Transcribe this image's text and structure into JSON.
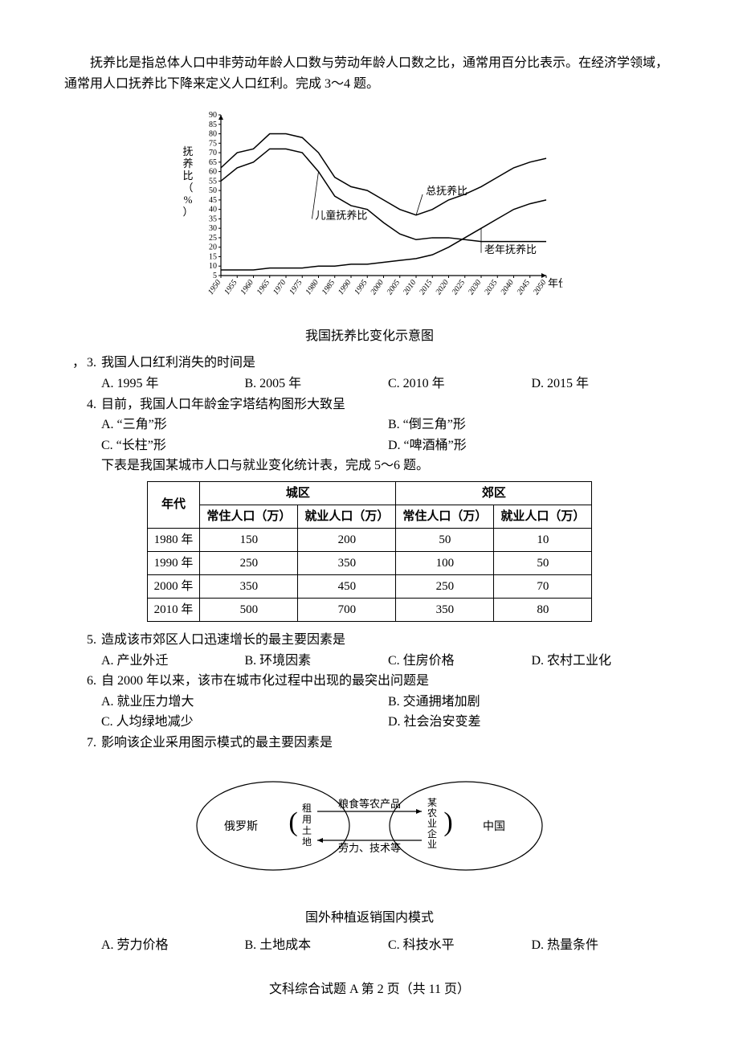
{
  "intro": {
    "p1": "抚养比是指总体人口中非劳动年龄人口数与劳动年龄人口数之比，通常用百分比表示。在经济学领域，通常用人口抚养比下降来定义人口红利。完成 3～4 题。"
  },
  "chart1": {
    "type": "line",
    "title": "我国抚养比变化示意图",
    "ylabel": "抚养比（%）",
    "xlabel": "年份",
    "xlim": [
      1950,
      2050
    ],
    "ylim": [
      5,
      90
    ],
    "yticks": [
      5,
      10,
      15,
      20,
      25,
      30,
      35,
      40,
      45,
      50,
      55,
      60,
      65,
      70,
      75,
      80,
      85,
      90
    ],
    "xticks": [
      1950,
      1955,
      1960,
      1965,
      1970,
      1975,
      1980,
      1985,
      1990,
      1995,
      2000,
      2005,
      2010,
      2015,
      2020,
      2025,
      2030,
      2035,
      2040,
      2045,
      2050
    ],
    "series": [
      {
        "name": "总抚养比",
        "label_pos": [
          2012,
          48
        ],
        "color": "#000000",
        "points": [
          [
            1950,
            62
          ],
          [
            1955,
            70
          ],
          [
            1960,
            72
          ],
          [
            1965,
            80
          ],
          [
            1970,
            80
          ],
          [
            1975,
            78
          ],
          [
            1980,
            70
          ],
          [
            1985,
            57
          ],
          [
            1990,
            52
          ],
          [
            1995,
            50
          ],
          [
            2000,
            45
          ],
          [
            2005,
            40
          ],
          [
            2010,
            37
          ],
          [
            2015,
            40
          ],
          [
            2020,
            45
          ],
          [
            2025,
            48
          ],
          [
            2030,
            52
          ],
          [
            2035,
            57
          ],
          [
            2040,
            62
          ],
          [
            2045,
            65
          ],
          [
            2050,
            67
          ]
        ]
      },
      {
        "name": "儿童抚养比",
        "label_pos": [
          1978,
          35
        ],
        "color": "#000000",
        "points": [
          [
            1950,
            55
          ],
          [
            1955,
            62
          ],
          [
            1960,
            65
          ],
          [
            1965,
            72
          ],
          [
            1970,
            72
          ],
          [
            1975,
            70
          ],
          [
            1980,
            60
          ],
          [
            1985,
            47
          ],
          [
            1990,
            42
          ],
          [
            1995,
            40
          ],
          [
            2000,
            33
          ],
          [
            2005,
            27
          ],
          [
            2010,
            24
          ],
          [
            2015,
            25
          ],
          [
            2020,
            25
          ],
          [
            2025,
            24
          ],
          [
            2030,
            23
          ],
          [
            2035,
            23
          ],
          [
            2040,
            23
          ],
          [
            2045,
            23
          ],
          [
            2050,
            23
          ]
        ]
      },
      {
        "name": "老年抚养比",
        "label_pos": [
          2030,
          17
        ],
        "color": "#000000",
        "points": [
          [
            1950,
            8
          ],
          [
            1955,
            8
          ],
          [
            1960,
            8
          ],
          [
            1965,
            9
          ],
          [
            1970,
            9
          ],
          [
            1975,
            9
          ],
          [
            1980,
            10
          ],
          [
            1985,
            10
          ],
          [
            1990,
            11
          ],
          [
            1995,
            11
          ],
          [
            2000,
            12
          ],
          [
            2005,
            13
          ],
          [
            2010,
            14
          ],
          [
            2015,
            16
          ],
          [
            2020,
            20
          ],
          [
            2025,
            25
          ],
          [
            2030,
            30
          ],
          [
            2035,
            35
          ],
          [
            2040,
            40
          ],
          [
            2045,
            43
          ],
          [
            2050,
            45
          ]
        ]
      }
    ],
    "line_width": 1.5,
    "axis_color": "#000000",
    "font_size_ticks": 10,
    "font_size_labels": 13
  },
  "q3": {
    "num": "3.",
    "prefix": "，",
    "stem": "我国人口红利消失的时间是",
    "A": "A.  1995 年",
    "B": "B.  2005 年",
    "C": "C.  2010 年",
    "D": "D.  2015 年"
  },
  "q4": {
    "num": "4.",
    "stem": "目前，我国人口年龄金字塔结构图形大致呈",
    "A": "A.  “三角”形",
    "B": "B.  “倒三角”形",
    "C": "C.  “长柱”形",
    "D": "D.  “啤酒桶”形"
  },
  "subintro56": "下表是我国某城市人口与就业变化统计表，完成 5～6 题。",
  "table": {
    "type": "table",
    "col_group1": "城区",
    "col_group2": "郊区",
    "rowhead": "年代",
    "subcols": [
      "常住人口（万）",
      "就业人口（万）",
      "常住人口（万）",
      "就业人口（万）"
    ],
    "rows": [
      {
        "year": "1980 年",
        "c": [
          "150",
          "200",
          "50",
          "10"
        ]
      },
      {
        "year": "1990 年",
        "c": [
          "250",
          "350",
          "100",
          "50"
        ]
      },
      {
        "year": "2000 年",
        "c": [
          "350",
          "450",
          "250",
          "70"
        ]
      },
      {
        "year": "2010 年",
        "c": [
          "500",
          "700",
          "350",
          "80"
        ]
      }
    ],
    "border_color": "#000000"
  },
  "q5": {
    "num": "5.",
    "stem": "造成该市郊区人口迅速增长的最主要因素是",
    "A": "A.  产业外迁",
    "B": "B.  环境因素",
    "C": "C.  住房价格",
    "D": "D.  农村工业化"
  },
  "q6": {
    "num": "6.",
    "stem": "自 2000 年以来，该市在城市化过程中出现的最突出问题是",
    "A": "A.  就业压力增大",
    "B": "B.  交通拥堵加剧",
    "C": "C.  人均绿地减少",
    "D": "D.  社会治安变差"
  },
  "q7": {
    "num": "7.",
    "stem": "影响该企业采用图示模式的最主要因素是",
    "A": "A.  劳力价格",
    "B": "B.  土地成本",
    "C": "C.  科技水平",
    "D": "D.  热量条件"
  },
  "diagram2": {
    "type": "flowchart",
    "caption": "国外种植返销国内模式",
    "left_ellipse": "俄罗斯",
    "left_sub": "租用土地",
    "right_ellipse": "中国",
    "right_sub": "某农业企业",
    "arrow_top": "粮食等农产品",
    "arrow_bottom": "劳力、技术等",
    "stroke": "#000000",
    "ellipse_rx": 95,
    "ellipse_ry": 55,
    "font_size": 14
  },
  "footer": "文科综合试题 A   第 2 页（共 11 页）"
}
